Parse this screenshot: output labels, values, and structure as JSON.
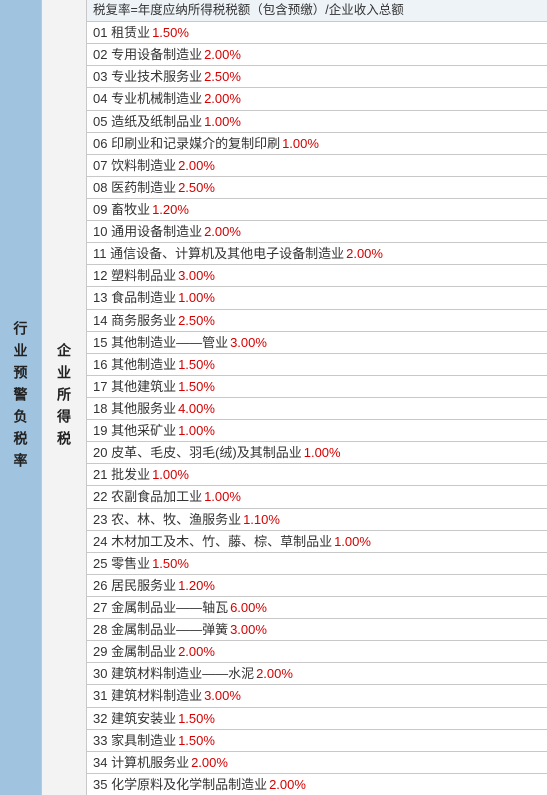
{
  "colors": {
    "left_bg": "#a0c3df",
    "mid_bg": "#f3f3f3",
    "border": "#c8c8c8",
    "rate_color": "#d60000",
    "header_bg": "#eef3f8",
    "text": "#333333"
  },
  "left_label": "行业预警负税率",
  "mid_label": "企业所得税",
  "header": "税复率=年度应纳所得税税额（包含预缴）/企业收入总额",
  "rows": [
    {
      "num": "01",
      "name": "租赁业",
      "rate": "1.50%"
    },
    {
      "num": "02",
      "name": "专用设备制造业",
      "rate": "2.00%"
    },
    {
      "num": "03",
      "name": "专业技术服务业",
      "rate": "2.50%"
    },
    {
      "num": "04",
      "name": "专业机械制造业",
      "rate": "2.00%"
    },
    {
      "num": "05",
      "name": "造纸及纸制品业",
      "rate": "1.00%"
    },
    {
      "num": "06",
      "name": "印刷业和记录媒介的复制印刷",
      "rate": "1.00%"
    },
    {
      "num": "07",
      "name": "饮料制造业",
      "rate": "2.00%"
    },
    {
      "num": "08",
      "name": "医药制造业",
      "rate": "2.50%"
    },
    {
      "num": "09",
      "name": "畜牧业",
      "rate": "1.20%"
    },
    {
      "num": "10",
      "name": "通用设备制造业",
      "rate": "2.00%"
    },
    {
      "num": "11",
      "name": "通信设备、计算机及其他电子设备制造业",
      "rate": "2.00%"
    },
    {
      "num": "12",
      "name": "塑料制品业",
      "rate": "3.00%"
    },
    {
      "num": "13",
      "name": "食品制造业",
      "rate": "1.00%"
    },
    {
      "num": "14",
      "name": "商务服务业",
      "rate": "2.50%"
    },
    {
      "num": "15",
      "name": "其他制造业——管业",
      "rate": "3.00%"
    },
    {
      "num": "16",
      "name": "其他制造业",
      "rate": "1.50%"
    },
    {
      "num": "17",
      "name": "其他建筑业",
      "rate": "1.50%"
    },
    {
      "num": "18",
      "name": "其他服务业",
      "rate": "4.00%"
    },
    {
      "num": "19",
      "name": "其他采矿业",
      "rate": "1.00%"
    },
    {
      "num": "20",
      "name": "皮革、毛皮、羽毛(绒)及其制品业",
      "rate": "1.00%"
    },
    {
      "num": "21",
      "name": "批发业",
      "rate": "1.00%"
    },
    {
      "num": "22",
      "name": "农副食品加工业",
      "rate": "1.00%"
    },
    {
      "num": "23",
      "name": "农、林、牧、渔服务业",
      "rate": "1.10%"
    },
    {
      "num": "24",
      "name": "木材加工及木、竹、藤、棕、草制品业",
      "rate": "1.00%"
    },
    {
      "num": "25",
      "name": "零售业",
      "rate": "1.50%"
    },
    {
      "num": "26",
      "name": "居民服务业",
      "rate": "1.20%"
    },
    {
      "num": "27",
      "name": "金属制品业——轴瓦",
      "rate": "6.00%"
    },
    {
      "num": "28",
      "name": "金属制品业——弹簧",
      "rate": "3.00%"
    },
    {
      "num": "29",
      "name": "金属制品业",
      "rate": "2.00%"
    },
    {
      "num": "30",
      "name": "建筑材料制造业——水泥",
      "rate": "2.00%"
    },
    {
      "num": "31",
      "name": "建筑材料制造业",
      "rate": "3.00%"
    },
    {
      "num": "32",
      "name": "建筑安装业",
      "rate": "1.50%"
    },
    {
      "num": "33",
      "name": "家具制造业",
      "rate": "1.50%"
    },
    {
      "num": "34",
      "name": "计算机服务业",
      "rate": "2.00%"
    },
    {
      "num": "35",
      "name": "化学原料及化学制品制造业",
      "rate": "2.00%"
    }
  ]
}
